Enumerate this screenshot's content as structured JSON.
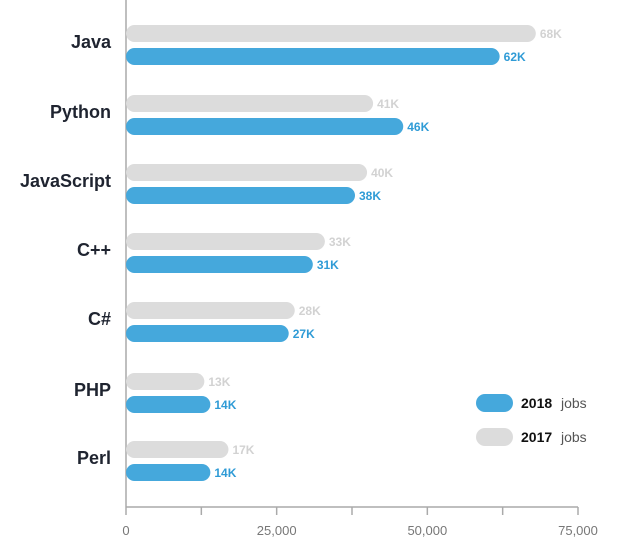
{
  "chart_data": {
    "type": "bar",
    "orientation": "horizontal",
    "categories": [
      "Java",
      "Python",
      "JavaScript",
      "C++",
      "C#",
      "PHP",
      "Perl"
    ],
    "series": [
      {
        "name": "2017",
        "values": [
          68000,
          41000,
          40000,
          33000,
          28000,
          13000,
          17000
        ],
        "labels": [
          "68K",
          "41K",
          "40K",
          "33K",
          "28K",
          "13K",
          "17K"
        ],
        "color": "#dcdcdc",
        "label_color": "#d2d2d2"
      },
      {
        "name": "2018",
        "values": [
          62000,
          46000,
          38000,
          31000,
          27000,
          14000,
          14000
        ],
        "labels": [
          "62K",
          "46K",
          "38K",
          "31K",
          "27K",
          "14K",
          "14K"
        ],
        "color": "#45a8dc",
        "label_color": "#2f9bd6"
      }
    ],
    "xlim": [
      0,
      75000
    ],
    "xticks": [
      "0",
      "25,000",
      "50,000",
      "75,000"
    ],
    "xtick_values": [
      0,
      25000,
      50000,
      75000
    ],
    "minor_tick_values": [
      12500,
      37500,
      62500
    ],
    "legend": {
      "placement": "bottom-right",
      "entries": [
        {
          "year": "2018",
          "suffix": "jobs"
        },
        {
          "year": "2017",
          "suffix": "jobs"
        }
      ]
    },
    "grid": false
  }
}
